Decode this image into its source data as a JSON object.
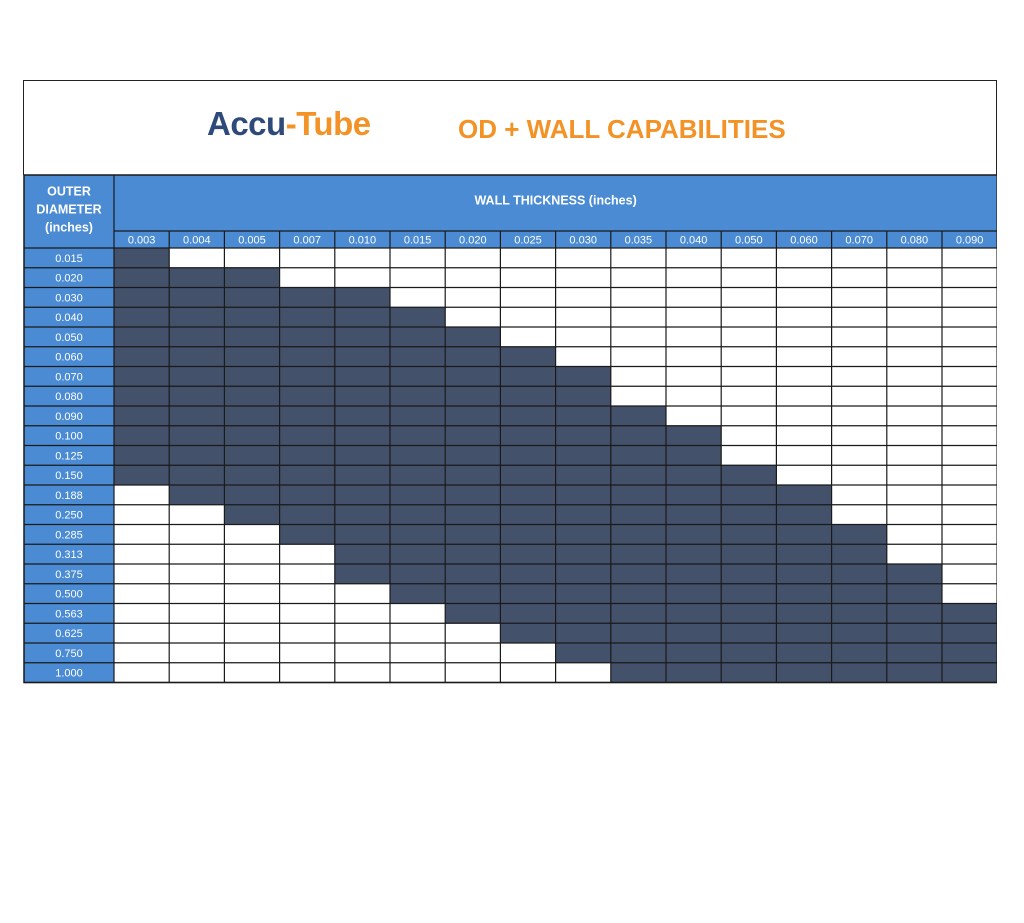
{
  "logo": {
    "part1": "Accu",
    "dash": "-",
    "part2": "Tube"
  },
  "title": "OD + WALL CAPABILITIES",
  "colors": {
    "accent": "#f39226",
    "header_blue": "#4a8bd4",
    "filled": "#43526a",
    "border": "#1a1a1a"
  },
  "chart_data": {
    "type": "table",
    "title": "OD + WALL CAPABILITIES",
    "row_header": [
      "OUTER",
      "DIAMETER",
      "(inches)"
    ],
    "column_group_header": "WALL THICKNESS (inches)",
    "wall_thickness": [
      "0.003",
      "0.004",
      "0.005",
      "0.007",
      "0.010",
      "0.015",
      "0.020",
      "0.025",
      "0.030",
      "0.035",
      "0.040",
      "0.050",
      "0.060",
      "0.070",
      "0.080",
      "0.090"
    ],
    "outer_diameter": [
      "0.015",
      "0.020",
      "0.030",
      "0.040",
      "0.050",
      "0.060",
      "0.070",
      "0.080",
      "0.090",
      "0.100",
      "0.125",
      "0.150",
      "0.188",
      "0.250",
      "0.285",
      "0.313",
      "0.375",
      "0.500",
      "0.563",
      "0.625",
      "0.750",
      "1.000"
    ],
    "capability_ranges": [
      {
        "od": "0.015",
        "min_wall": "0.003",
        "max_wall": "0.003"
      },
      {
        "od": "0.020",
        "min_wall": "0.003",
        "max_wall": "0.005"
      },
      {
        "od": "0.030",
        "min_wall": "0.003",
        "max_wall": "0.010"
      },
      {
        "od": "0.040",
        "min_wall": "0.003",
        "max_wall": "0.015"
      },
      {
        "od": "0.050",
        "min_wall": "0.003",
        "max_wall": "0.020"
      },
      {
        "od": "0.060",
        "min_wall": "0.003",
        "max_wall": "0.025"
      },
      {
        "od": "0.070",
        "min_wall": "0.003",
        "max_wall": "0.030"
      },
      {
        "od": "0.080",
        "min_wall": "0.003",
        "max_wall": "0.030"
      },
      {
        "od": "0.090",
        "min_wall": "0.003",
        "max_wall": "0.035"
      },
      {
        "od": "0.100",
        "min_wall": "0.003",
        "max_wall": "0.040"
      },
      {
        "od": "0.125",
        "min_wall": "0.003",
        "max_wall": "0.040"
      },
      {
        "od": "0.150",
        "min_wall": "0.003",
        "max_wall": "0.050"
      },
      {
        "od": "0.188",
        "min_wall": "0.004",
        "max_wall": "0.060"
      },
      {
        "od": "0.250",
        "min_wall": "0.005",
        "max_wall": "0.060"
      },
      {
        "od": "0.285",
        "min_wall": "0.007",
        "max_wall": "0.070"
      },
      {
        "od": "0.313",
        "min_wall": "0.010",
        "max_wall": "0.070"
      },
      {
        "od": "0.375",
        "min_wall": "0.010",
        "max_wall": "0.080"
      },
      {
        "od": "0.500",
        "min_wall": "0.015",
        "max_wall": "0.080"
      },
      {
        "od": "0.563",
        "min_wall": "0.020",
        "max_wall": "0.090"
      },
      {
        "od": "0.625",
        "min_wall": "0.025",
        "max_wall": "0.090"
      },
      {
        "od": "0.750",
        "min_wall": "0.030",
        "max_wall": "0.090"
      },
      {
        "od": "1.000",
        "min_wall": "0.035",
        "max_wall": "0.090"
      }
    ]
  }
}
